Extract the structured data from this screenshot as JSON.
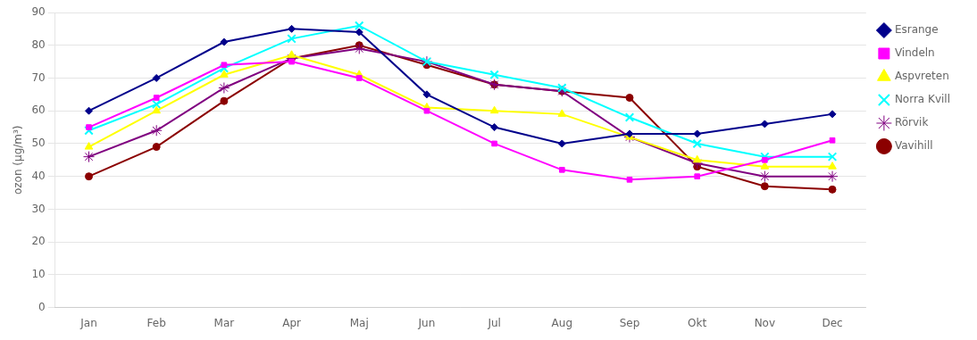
{
  "chart_data": {
    "type": "line",
    "categories": [
      "Jan",
      "Feb",
      "Mar",
      "Apr",
      "Maj",
      "Jun",
      "Jul",
      "Aug",
      "Sep",
      "Okt",
      "Nov",
      "Dec"
    ],
    "series": [
      {
        "name": "Esrange",
        "color": "#00008B",
        "marker": "diamond",
        "values": [
          60,
          70,
          81,
          85,
          84,
          65,
          55,
          50,
          53,
          53,
          56,
          59
        ]
      },
      {
        "name": "Vindeln",
        "color": "#FF00FF",
        "marker": "square",
        "values": [
          55,
          64,
          74,
          75,
          70,
          60,
          50,
          42,
          39,
          40,
          45,
          51
        ]
      },
      {
        "name": "Aspvreten",
        "color": "#FFFF00",
        "marker": "triangle",
        "values": [
          49,
          60,
          71,
          77,
          71,
          61,
          60,
          59,
          52,
          45,
          43,
          43
        ]
      },
      {
        "name": "Norra Kvill",
        "color": "#00FFFF",
        "marker": "x",
        "values": [
          54,
          62,
          73,
          82,
          86,
          75,
          71,
          67,
          58,
          50,
          46,
          46
        ]
      },
      {
        "name": "Rörvik",
        "color": "#800080",
        "marker": "star",
        "values": [
          46,
          54,
          67,
          76,
          79,
          75,
          68,
          66,
          52,
          44,
          40,
          40
        ]
      },
      {
        "name": "Vavihill",
        "color": "#8B0000",
        "marker": "circle",
        "values": [
          40,
          49,
          63,
          76,
          80,
          74,
          68,
          66,
          64,
          43,
          37,
          36
        ]
      }
    ],
    "ylabel": "ozon (µg/m³)",
    "ylim": [
      0,
      90
    ],
    "yticks": [
      0,
      10,
      20,
      30,
      40,
      50,
      60,
      70,
      80,
      90
    ],
    "grid": true,
    "legend": "right"
  }
}
